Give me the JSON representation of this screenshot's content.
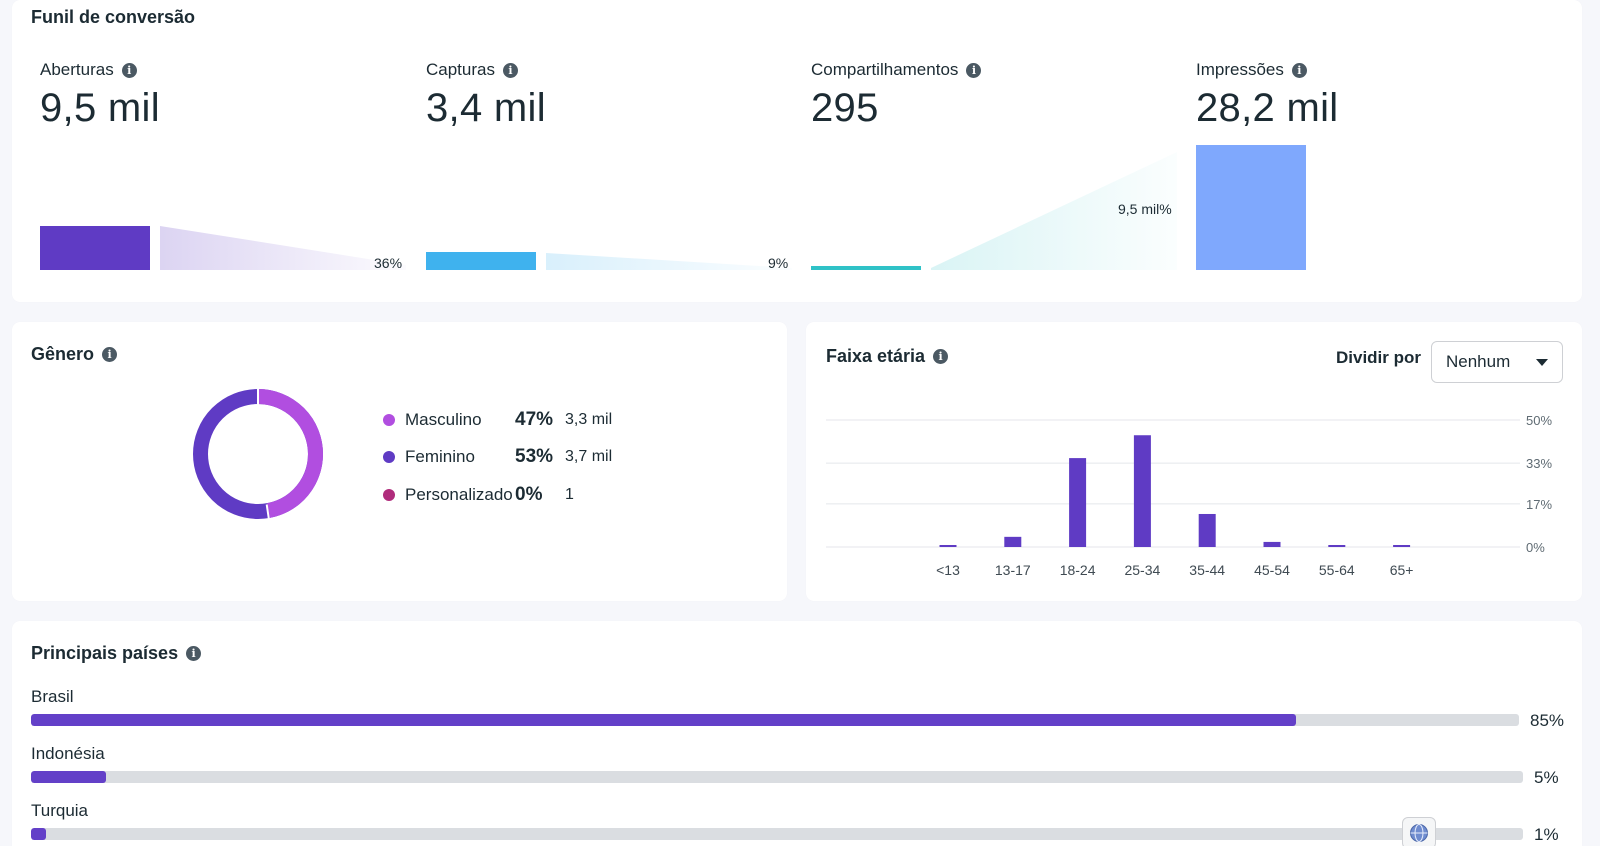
{
  "funnel": {
    "title": "Funil de conversão",
    "metrics": [
      {
        "label": "Aberturas",
        "value": "9,5 mil",
        "bar_fraction": 0.35,
        "color": "#5f3bc4"
      },
      {
        "label": "Capturas",
        "value": "3,4 mil",
        "bar_fraction": 0.14,
        "color": "#3fb2ee"
      },
      {
        "label": "Compartilhamentos",
        "value": "295",
        "bar_fraction": 0.03,
        "color": "#2fc2c7"
      },
      {
        "label": "Impressões",
        "value": "28,2 mil",
        "bar_fraction": 1.0,
        "color": "#7fa8fd"
      }
    ],
    "conversions": [
      "36%",
      "9%",
      "9,5 mil%"
    ]
  },
  "gender": {
    "title": "Gênero",
    "items": [
      {
        "name": "Masculino",
        "pct": "47%",
        "abs": "3,3 mil",
        "color": "#b14ee0"
      },
      {
        "name": "Feminino",
        "pct": "53%",
        "abs": "3,7 mil",
        "color": "#5f3bc4"
      },
      {
        "name": "Personalizado",
        "pct": "0%",
        "abs": "1",
        "color": "#b02c7c"
      }
    ]
  },
  "age": {
    "title": "Faixa etária",
    "split_label": "Dividir por",
    "split_value": "Nenhum"
  },
  "chart_data": {
    "type": "bar",
    "categories": [
      "<13",
      "13-17",
      "18-24",
      "25-34",
      "35-44",
      "45-54",
      "55-64",
      "65+"
    ],
    "values": [
      0.5,
      4,
      35,
      44,
      13,
      2,
      0.5,
      0.5
    ],
    "yticks": [
      "50%",
      "33%",
      "17%",
      "0%"
    ],
    "ylim": [
      0,
      50
    ],
    "color": "#5f3bc4"
  },
  "countries": {
    "title": "Principais países",
    "items": [
      {
        "name": "Brasil",
        "pct_label": "85%",
        "value": 85
      },
      {
        "name": "Indonésia",
        "pct_label": "5%",
        "value": 5
      },
      {
        "name": "Turquia",
        "pct_label": "1%",
        "value": 1
      }
    ]
  }
}
